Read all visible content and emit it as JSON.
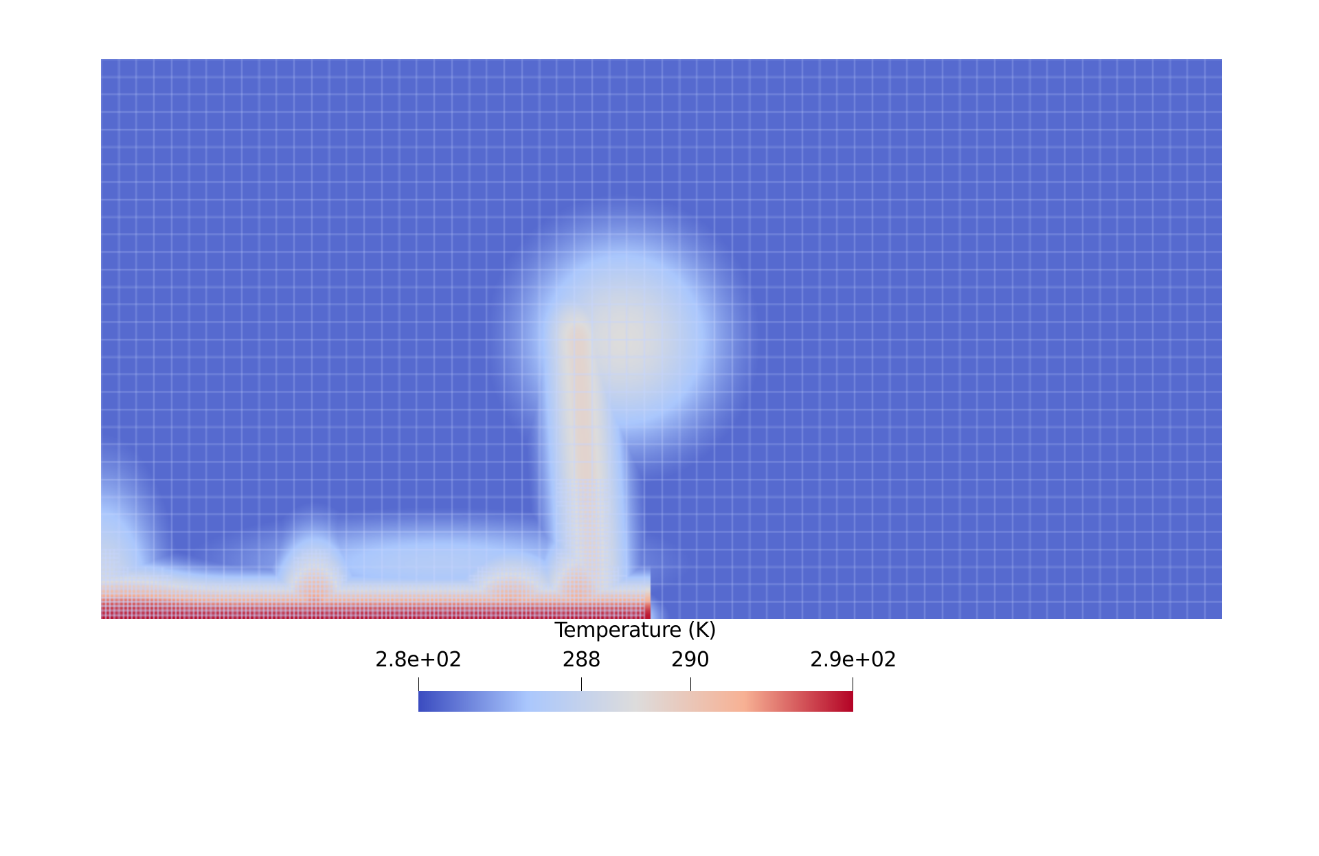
{
  "chart_data": {
    "type": "heatmap",
    "title": "",
    "colorbar": {
      "title": "Temperature  (K)",
      "range": [
        285,
        293
      ],
      "ticks": [
        {
          "value": 285,
          "label": "2.8e+02"
        },
        {
          "value": 288,
          "label": "288"
        },
        {
          "value": 290,
          "label": "290"
        },
        {
          "value": 293,
          "label": "2.9e+02"
        }
      ],
      "colormap": "coolwarm",
      "colors": [
        "#3b4cc0",
        "#aac7fd",
        "#dddcdc",
        "#f7b194",
        "#b40426"
      ]
    },
    "mesh": {
      "base_columns": 64,
      "base_rows": 32,
      "adaptive_refinement": true,
      "grid_lines": true
    }
  }
}
